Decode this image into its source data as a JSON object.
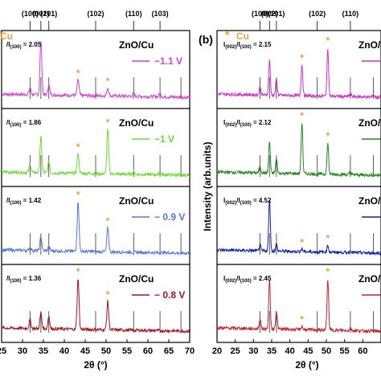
{
  "chart_data": [
    {
      "type": "line",
      "panel_label": "",
      "xlabel": "2θ (°)",
      "ylabel": "",
      "xlim": [
        25,
        70
      ],
      "x_ticks": [
        25,
        30,
        35,
        40,
        45,
        50,
        55,
        60,
        65,
        70
      ],
      "top_peak_labels": [
        {
          "label": "(100)",
          "x": 31.8
        },
        {
          "label": "(002)",
          "x": 34.4
        },
        {
          "label": "(101)",
          "x": 36.3
        },
        {
          "label": "(102)",
          "x": 47.5
        },
        {
          "label": "(110)",
          "x": 56.6
        },
        {
          "label": "(103)",
          "x": 62.9
        }
      ],
      "reference_lines_x": [
        31.8,
        34.4,
        36.3,
        47.5,
        56.6,
        62.9,
        67.9
      ],
      "legend_marker_label": "Cu",
      "series": [
        {
          "name": "−1.1 V",
          "sample": "ZnO/Cu",
          "color": "#d63fd6",
          "ratio_text": "2.05",
          "peaks": [
            {
              "x": 31.8,
              "h": 0.12
            },
            {
              "x": 34.4,
              "h": 0.95
            },
            {
              "x": 36.3,
              "h": 0.18
            },
            {
              "x": 43.3,
              "h": 0.28
            },
            {
              "x": 50.4,
              "h": 0.14
            },
            {
              "x": 56.6,
              "h": 0.05
            },
            {
              "x": 62.9,
              "h": 0.06
            }
          ],
          "cu_marks": [
            43.3,
            50.4
          ]
        },
        {
          "name": "−1 V",
          "sample": "ZnO/Cu",
          "color": "#66dd33",
          "ratio_text": "1.86",
          "peaks": [
            {
              "x": 31.8,
              "h": 0.15
            },
            {
              "x": 34.4,
              "h": 0.62
            },
            {
              "x": 36.3,
              "h": 0.2
            },
            {
              "x": 43.3,
              "h": 0.35
            },
            {
              "x": 50.4,
              "h": 0.78
            },
            {
              "x": 56.6,
              "h": 0.05
            },
            {
              "x": 62.9,
              "h": 0.06
            }
          ],
          "cu_marks": [
            43.3,
            50.4
          ]
        },
        {
          "name": "− 0.9 V",
          "sample": "ZnO/Cu",
          "color": "#5577dd",
          "ratio_text": "1.42",
          "peaks": [
            {
              "x": 31.8,
              "h": 0.06
            },
            {
              "x": 34.4,
              "h": 0.25
            },
            {
              "x": 36.3,
              "h": 0.07
            },
            {
              "x": 43.3,
              "h": 0.88
            },
            {
              "x": 50.4,
              "h": 0.42
            }
          ],
          "cu_marks": [
            43.3,
            50.4
          ]
        },
        {
          "name": "− 0.8 V",
          "sample": "ZnO/Cu",
          "color": "#aa1122",
          "ratio_text": "1.36",
          "peaks": [
            {
              "x": 31.8,
              "h": 0.15
            },
            {
              "x": 34.4,
              "h": 0.28
            },
            {
              "x": 36.3,
              "h": 0.22
            },
            {
              "x": 43.3,
              "h": 0.9
            },
            {
              "x": 50.4,
              "h": 0.5
            }
          ],
          "cu_marks": [
            43.3,
            50.4
          ]
        }
      ]
    },
    {
      "type": "line",
      "panel_label": "(b)",
      "xlabel": "2θ (°)",
      "ylabel": "Intensity (arb.units)",
      "xlim": [
        20,
        65
      ],
      "x_ticks": [
        20,
        25,
        30,
        35,
        40,
        45,
        50,
        55,
        60
      ],
      "top_peak_labels": [
        {
          "label": "(100)",
          "x": 31.8
        },
        {
          "label": "(002)",
          "x": 34.4
        },
        {
          "label": "(101)",
          "x": 36.3
        },
        {
          "label": "(102)",
          "x": 47.5
        },
        {
          "label": "(110)",
          "x": 56.6
        }
      ],
      "reference_lines_x": [
        31.8,
        34.4,
        36.3,
        47.5,
        56.6,
        62.9
      ],
      "legend_marker_label": "Cu",
      "series": [
        {
          "name": "",
          "sample": "ZnO/",
          "color": "#cc33cc",
          "ratio_text": "2.15",
          "peaks": [
            {
              "x": 31.8,
              "h": 0.15
            },
            {
              "x": 34.4,
              "h": 0.62
            },
            {
              "x": 36.3,
              "h": 0.28
            },
            {
              "x": 43.3,
              "h": 0.55
            },
            {
              "x": 50.4,
              "h": 0.85
            },
            {
              "x": 56.6,
              "h": 0.05
            },
            {
              "x": 62.9,
              "h": 0.05
            }
          ],
          "cu_marks": [
            43.3,
            50.4
          ]
        },
        {
          "name": "",
          "sample": "ZnO/",
          "color": "#228822",
          "ratio_text": "2.12",
          "peaks": [
            {
              "x": 31.8,
              "h": 0.12
            },
            {
              "x": 34.4,
              "h": 0.55
            },
            {
              "x": 36.3,
              "h": 0.25
            },
            {
              "x": 43.3,
              "h": 0.9
            },
            {
              "x": 50.4,
              "h": 0.55
            },
            {
              "x": 56.6,
              "h": 0.05
            }
          ],
          "cu_marks": [
            43.3,
            50.4
          ]
        },
        {
          "name": "",
          "sample": "ZnO/",
          "color": "#1122aa",
          "ratio_text": "4.52",
          "peaks": [
            {
              "x": 31.8,
              "h": 0.1
            },
            {
              "x": 34.4,
              "h": 0.92
            },
            {
              "x": 36.3,
              "h": 0.12
            },
            {
              "x": 43.3,
              "h": 0.05
            },
            {
              "x": 50.4,
              "h": 0.12
            },
            {
              "x": 56.6,
              "h": 0.04
            }
          ],
          "cu_marks": [
            43.3,
            50.4
          ]
        },
        {
          "name": "",
          "sample": "ZnO/",
          "color": "#cc2233",
          "ratio_text": "2.45",
          "peaks": [
            {
              "x": 31.8,
              "h": 0.18
            },
            {
              "x": 34.4,
              "h": 0.85
            },
            {
              "x": 36.3,
              "h": 0.32
            },
            {
              "x": 43.3,
              "h": 0.06
            },
            {
              "x": 50.4,
              "h": 0.9
            },
            {
              "x": 56.6,
              "h": 0.05
            }
          ],
          "cu_marks": [
            43.3,
            50.4
          ]
        }
      ]
    }
  ],
  "labels": {
    "ratio_prefix": "/I",
    "ratio_prefix_full": "I",
    "sub_002": "(002)",
    "sub_100": "(100)",
    "cu_star": "*",
    "cu_text": "Cu"
  }
}
